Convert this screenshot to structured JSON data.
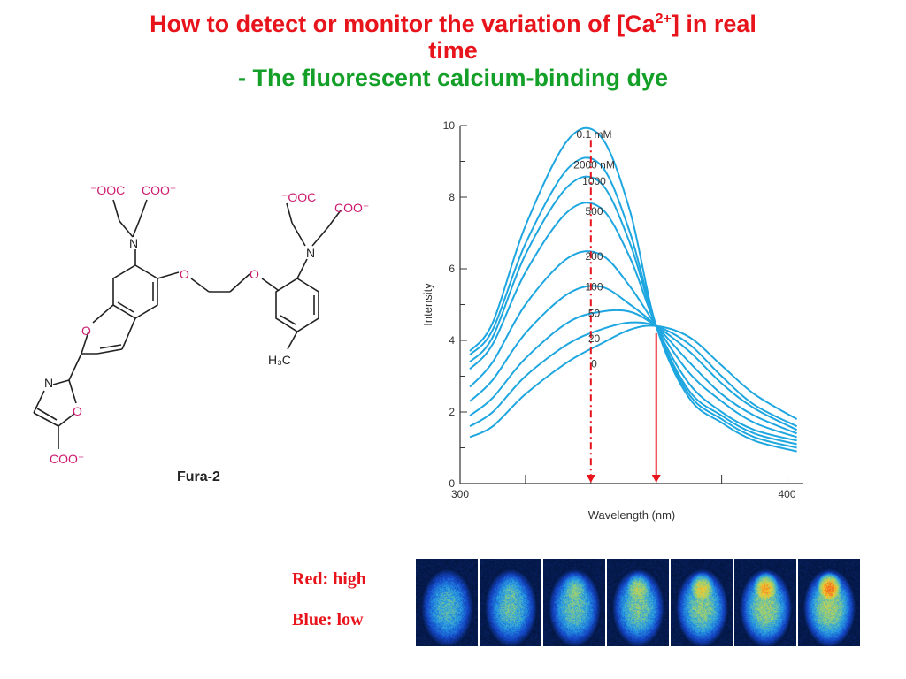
{
  "title": {
    "line1_a": "How to detect or monitor the variation of [Ca",
    "line1_sup": "2+",
    "line1_b": "] in real",
    "line2": "time",
    "line3": "- The fluorescent calcium-binding dye"
  },
  "structure": {
    "name": "Fura-2",
    "atoms": {
      "carboxylate_left": "⁻OOC",
      "carboxylate_right": "COO⁻",
      "nitrogen": "N",
      "oxygen": "O",
      "methyl": "H₃C"
    }
  },
  "legend": {
    "red": "Red: high",
    "blue": "Blue: low"
  },
  "colors": {
    "title_red": "#e8141c",
    "title_green": "#14a028",
    "curve": "#1ea6e0",
    "arrow": "#e8141c"
  },
  "chart_data": {
    "type": "line",
    "xlabel": "Wavelength (nm)",
    "ylabel": "Intensity",
    "xlim": [
      300,
      405
    ],
    "ylim": [
      0,
      10
    ],
    "x_ticks": [
      300,
      400
    ],
    "y_ticks": [
      0,
      2,
      4,
      6,
      8,
      10
    ],
    "isosbestic": {
      "x": 360,
      "y": 4.4
    },
    "series": [
      {
        "name": "0.1 mM",
        "values": [
          [
            303,
            3.7
          ],
          [
            310,
            4.5
          ],
          [
            320,
            7.2
          ],
          [
            333,
            9.6
          ],
          [
            343,
            9.7
          ],
          [
            352,
            7.6
          ],
          [
            360,
            4.4
          ],
          [
            370,
            2.4
          ],
          [
            380,
            1.7
          ],
          [
            390,
            1.2
          ],
          [
            403,
            0.9
          ]
        ]
      },
      {
        "name": "2000 nM",
        "values": [
          [
            303,
            3.6
          ],
          [
            310,
            4.3
          ],
          [
            320,
            6.7
          ],
          [
            333,
            8.8
          ],
          [
            343,
            8.9
          ],
          [
            352,
            7.0
          ],
          [
            360,
            4.4
          ],
          [
            370,
            2.5
          ],
          [
            380,
            1.8
          ],
          [
            390,
            1.3
          ],
          [
            403,
            1.0
          ]
        ]
      },
      {
        "name": "1000",
        "values": [
          [
            303,
            3.4
          ],
          [
            310,
            4.1
          ],
          [
            320,
            6.4
          ],
          [
            333,
            8.3
          ],
          [
            343,
            8.4
          ],
          [
            352,
            6.7
          ],
          [
            360,
            4.4
          ],
          [
            370,
            2.6
          ],
          [
            380,
            1.9
          ],
          [
            390,
            1.4
          ],
          [
            403,
            1.1
          ]
        ]
      },
      {
        "name": "500",
        "values": [
          [
            303,
            3.2
          ],
          [
            310,
            3.9
          ],
          [
            320,
            5.9
          ],
          [
            333,
            7.6
          ],
          [
            343,
            7.7
          ],
          [
            352,
            6.3
          ],
          [
            360,
            4.4
          ],
          [
            370,
            2.8
          ],
          [
            380,
            2.0
          ],
          [
            390,
            1.5
          ],
          [
            403,
            1.2
          ]
        ]
      },
      {
        "name": "200",
        "values": [
          [
            303,
            2.7
          ],
          [
            310,
            3.4
          ],
          [
            320,
            5.0
          ],
          [
            333,
            6.3
          ],
          [
            343,
            6.4
          ],
          [
            352,
            5.5
          ],
          [
            360,
            4.4
          ],
          [
            370,
            3.1
          ],
          [
            380,
            2.3
          ],
          [
            390,
            1.7
          ],
          [
            403,
            1.3
          ]
        ]
      },
      {
        "name": "100",
        "values": [
          [
            303,
            2.3
          ],
          [
            310,
            2.9
          ],
          [
            320,
            4.2
          ],
          [
            333,
            5.3
          ],
          [
            343,
            5.5
          ],
          [
            352,
            5.0
          ],
          [
            360,
            4.4
          ],
          [
            370,
            3.4
          ],
          [
            380,
            2.5
          ],
          [
            390,
            1.9
          ],
          [
            403,
            1.4
          ]
        ]
      },
      {
        "name": "50",
        "values": [
          [
            303,
            1.9
          ],
          [
            310,
            2.4
          ],
          [
            320,
            3.5
          ],
          [
            333,
            4.5
          ],
          [
            343,
            4.8
          ],
          [
            352,
            4.8
          ],
          [
            360,
            4.4
          ],
          [
            370,
            3.7
          ],
          [
            380,
            2.8
          ],
          [
            390,
            2.1
          ],
          [
            403,
            1.5
          ]
        ]
      },
      {
        "name": "20",
        "values": [
          [
            303,
            1.6
          ],
          [
            310,
            2.0
          ],
          [
            320,
            3.0
          ],
          [
            333,
            3.9
          ],
          [
            343,
            4.3
          ],
          [
            352,
            4.5
          ],
          [
            360,
            4.4
          ],
          [
            370,
            3.9
          ],
          [
            380,
            3.0
          ],
          [
            390,
            2.2
          ],
          [
            403,
            1.6
          ]
        ]
      },
      {
        "name": "0",
        "values": [
          [
            303,
            1.3
          ],
          [
            310,
            1.6
          ],
          [
            320,
            2.5
          ],
          [
            333,
            3.4
          ],
          [
            343,
            3.9
          ],
          [
            352,
            4.3
          ],
          [
            360,
            4.4
          ],
          [
            370,
            4.1
          ],
          [
            380,
            3.3
          ],
          [
            390,
            2.5
          ],
          [
            403,
            1.8
          ]
        ]
      }
    ],
    "arrows": [
      {
        "style": "dash-dot",
        "x": 340,
        "y_from": 9.6,
        "y_to": 0
      },
      {
        "style": "solid",
        "x": 360,
        "y_from": 4.2,
        "y_to": 0
      }
    ]
  },
  "images": {
    "frame_count": 7,
    "description_key": "calcium-imaging-frames"
  }
}
